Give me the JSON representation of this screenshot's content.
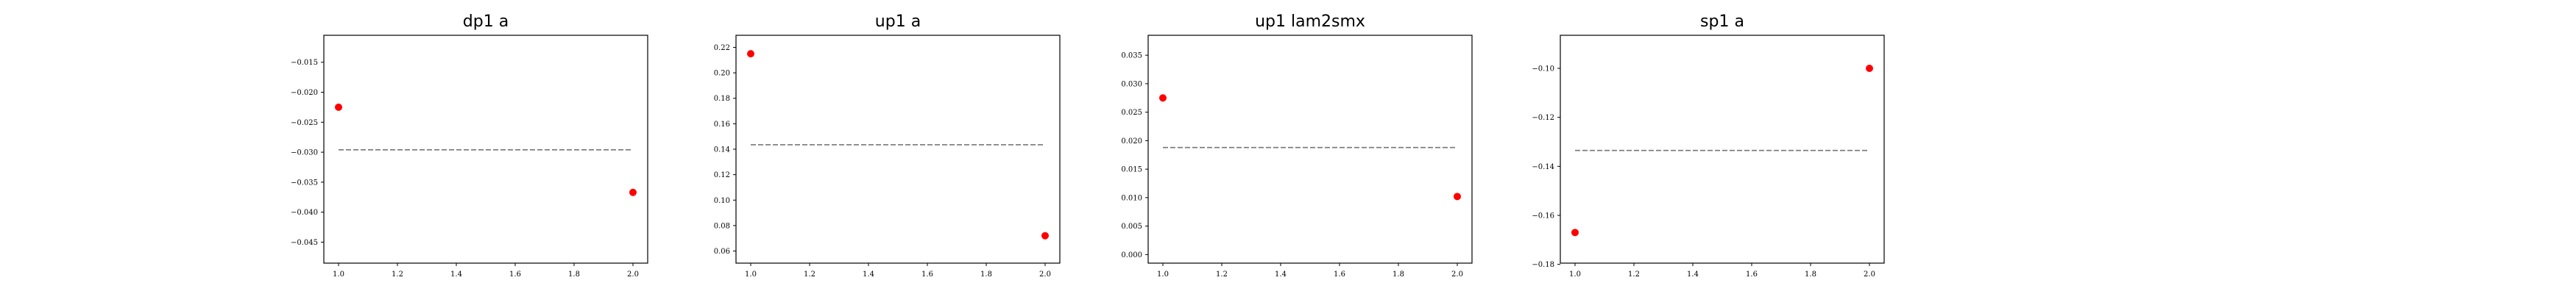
{
  "chart_data": [
    {
      "type": "scatter",
      "title": "dp1 a",
      "xlabel": "",
      "ylabel": "",
      "xlim": [
        0.95,
        2.05
      ],
      "ylim": [
        -0.0485,
        -0.0105
      ],
      "x_ticks": [
        1.0,
        1.2,
        1.4,
        1.6,
        1.8,
        2.0
      ],
      "x_tick_labels": [
        "1.0",
        "1.2",
        "1.4",
        "1.6",
        "1.8",
        "2.0"
      ],
      "y_ticks": [
        -0.045,
        -0.04,
        -0.035,
        -0.03,
        -0.025,
        -0.02,
        -0.015
      ],
      "y_tick_labels": [
        "−0.045",
        "−0.040",
        "−0.035",
        "−0.030",
        "−0.025",
        "−0.020",
        "−0.015"
      ],
      "points": [
        {
          "x": 1.0,
          "y": -0.0225
        },
        {
          "x": 2.0,
          "y": -0.0367
        }
      ],
      "reference_line": {
        "y": -0.0296,
        "x_from": 1.0,
        "x_to": 2.0,
        "style": "dashed",
        "color": "#777777"
      },
      "point_color": "#ff0000",
      "grid": false
    },
    {
      "type": "scatter",
      "title": "up1 a",
      "xlabel": "",
      "ylabel": "",
      "xlim": [
        0.95,
        2.05
      ],
      "ylim": [
        0.0505,
        0.2295
      ],
      "x_ticks": [
        1.0,
        1.2,
        1.4,
        1.6,
        1.8,
        2.0
      ],
      "x_tick_labels": [
        "1.0",
        "1.2",
        "1.4",
        "1.6",
        "1.8",
        "2.0"
      ],
      "y_ticks": [
        0.06,
        0.08,
        0.1,
        0.12,
        0.14,
        0.16,
        0.18,
        0.2,
        0.22
      ],
      "y_tick_labels": [
        "0.06",
        "0.08",
        "0.10",
        "0.12",
        "0.14",
        "0.16",
        "0.18",
        "0.20",
        "0.22"
      ],
      "points": [
        {
          "x": 1.0,
          "y": 0.215
        },
        {
          "x": 2.0,
          "y": 0.072
        }
      ],
      "reference_line": {
        "y": 0.1435,
        "x_from": 1.0,
        "x_to": 2.0,
        "style": "dashed",
        "color": "#777777"
      },
      "point_color": "#ff0000",
      "grid": false
    },
    {
      "type": "scatter",
      "title": "up1 lam2smx",
      "xlabel": "",
      "ylabel": "",
      "xlim": [
        0.95,
        2.05
      ],
      "ylim": [
        -0.0015,
        0.0385
      ],
      "x_ticks": [
        1.0,
        1.2,
        1.4,
        1.6,
        1.8,
        2.0
      ],
      "x_tick_labels": [
        "1.0",
        "1.2",
        "1.4",
        "1.6",
        "1.8",
        "2.0"
      ],
      "y_ticks": [
        0.0,
        0.005,
        0.01,
        0.015,
        0.02,
        0.025,
        0.03,
        0.035
      ],
      "y_tick_labels": [
        "0.000",
        "0.005",
        "0.010",
        "0.015",
        "0.020",
        "0.025",
        "0.030",
        "0.035"
      ],
      "points": [
        {
          "x": 1.0,
          "y": 0.0275
        },
        {
          "x": 2.0,
          "y": 0.0102
        }
      ],
      "reference_line": {
        "y": 0.0188,
        "x_from": 1.0,
        "x_to": 2.0,
        "style": "dashed",
        "color": "#777777"
      },
      "point_color": "#ff0000",
      "grid": false
    },
    {
      "type": "scatter",
      "title": "sp1 a",
      "xlabel": "",
      "ylabel": "",
      "xlim": [
        0.95,
        2.05
      ],
      "ylim": [
        -0.1795,
        -0.0865
      ],
      "x_ticks": [
        1.0,
        1.2,
        1.4,
        1.6,
        1.8,
        2.0
      ],
      "x_tick_labels": [
        "1.0",
        "1.2",
        "1.4",
        "1.6",
        "1.8",
        "2.0"
      ],
      "y_ticks": [
        -0.18,
        -0.16,
        -0.14,
        -0.12,
        -0.1
      ],
      "y_tick_labels": [
        "−0.18",
        "−0.16",
        "−0.14",
        "−0.12",
        "−0.10"
      ],
      "points": [
        {
          "x": 1.0,
          "y": -0.167
        },
        {
          "x": 2.0,
          "y": -0.1
        }
      ],
      "reference_line": {
        "y": -0.1335,
        "x_from": 1.0,
        "x_to": 2.0,
        "style": "dashed",
        "color": "#777777"
      },
      "point_color": "#ff0000",
      "grid": false
    }
  ]
}
